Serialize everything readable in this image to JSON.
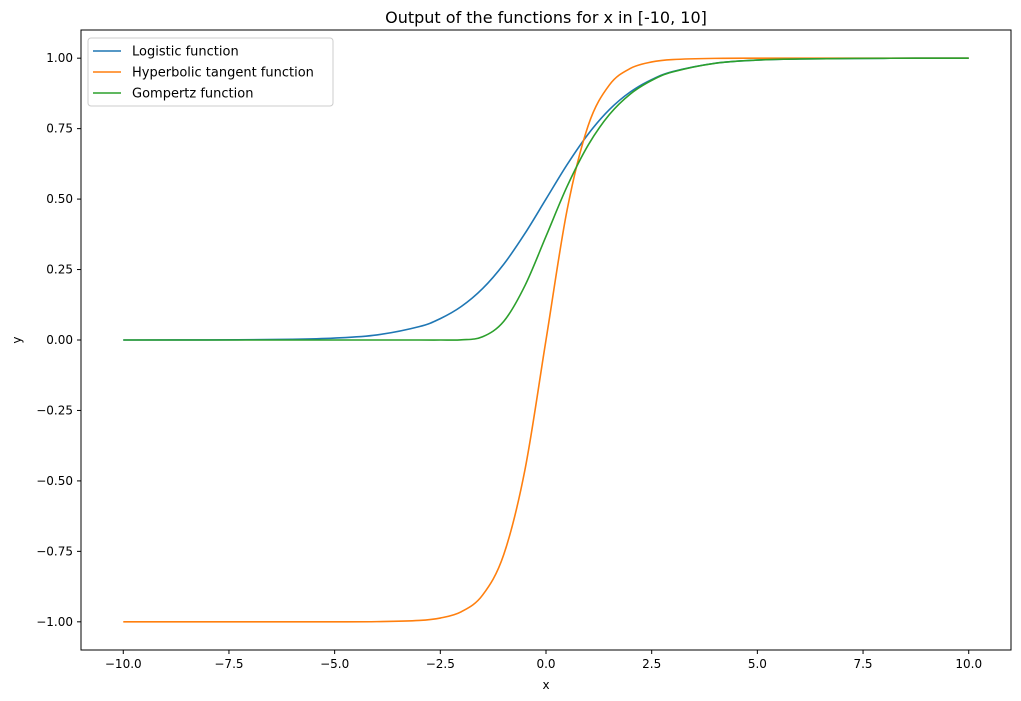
{
  "chart_data": {
    "type": "line",
    "title": "Output of the functions for x in [-10, 10]",
    "xlabel": "x",
    "ylabel": "y",
    "xlim": [
      -11.0,
      11.0
    ],
    "ylim": [
      -1.1,
      1.1
    ],
    "x_ticks": [
      -10.0,
      -7.5,
      -5.0,
      -2.5,
      0.0,
      2.5,
      5.0,
      7.5,
      10.0
    ],
    "x_tick_labels": [
      "−10.0",
      "−7.5",
      "−5.0",
      "−2.5",
      "0.0",
      "2.5",
      "5.0",
      "7.5",
      "10.0"
    ],
    "y_ticks": [
      -1.0,
      -0.75,
      -0.5,
      -0.25,
      0.0,
      0.25,
      0.5,
      0.75,
      1.0
    ],
    "y_tick_labels": [
      "−1.00",
      "−0.75",
      "−0.50",
      "−0.25",
      "0.00",
      "0.25",
      "0.50",
      "0.75",
      "1.00"
    ],
    "grid": false,
    "legend_position": "top-left",
    "x": [
      -10,
      -8,
      -6,
      -5,
      -4,
      -3,
      -2.5,
      -2,
      -1.5,
      -1,
      -0.5,
      0,
      0.5,
      1,
      1.5,
      2,
      2.5,
      3,
      4,
      5,
      6,
      8,
      10
    ],
    "series": [
      {
        "name": "Logistic function",
        "color": "#1f77b4",
        "values": [
          0.0,
          0.0003,
          0.0025,
          0.0067,
          0.018,
          0.0474,
          0.0759,
          0.1192,
          0.1824,
          0.2689,
          0.3775,
          0.5,
          0.6225,
          0.7311,
          0.8176,
          0.8808,
          0.9241,
          0.9526,
          0.982,
          0.9933,
          0.9975,
          0.9997,
          1.0
        ]
      },
      {
        "name": "Hyperbolic tangent function",
        "color": "#ff7f0e",
        "values": [
          -1.0,
          -1.0,
          -1.0,
          -0.9999,
          -0.9993,
          -0.9951,
          -0.9866,
          -0.964,
          -0.9051,
          -0.7616,
          -0.4621,
          0.0,
          0.4621,
          0.7616,
          0.9051,
          0.964,
          0.9866,
          0.9951,
          0.9993,
          0.9999,
          1.0,
          1.0,
          1.0
        ]
      },
      {
        "name": "Gompertz function",
        "color": "#2ca02c",
        "values": [
          0.0,
          0.0,
          0.0,
          0.0,
          0.0,
          0.0,
          0.0,
          0.0006,
          0.0114,
          0.066,
          0.1923,
          0.3679,
          0.5452,
          0.6922,
          0.8,
          0.8734,
          0.9212,
          0.9514,
          0.9819,
          0.9933,
          0.9975,
          0.9997,
          1.0
        ]
      }
    ]
  }
}
